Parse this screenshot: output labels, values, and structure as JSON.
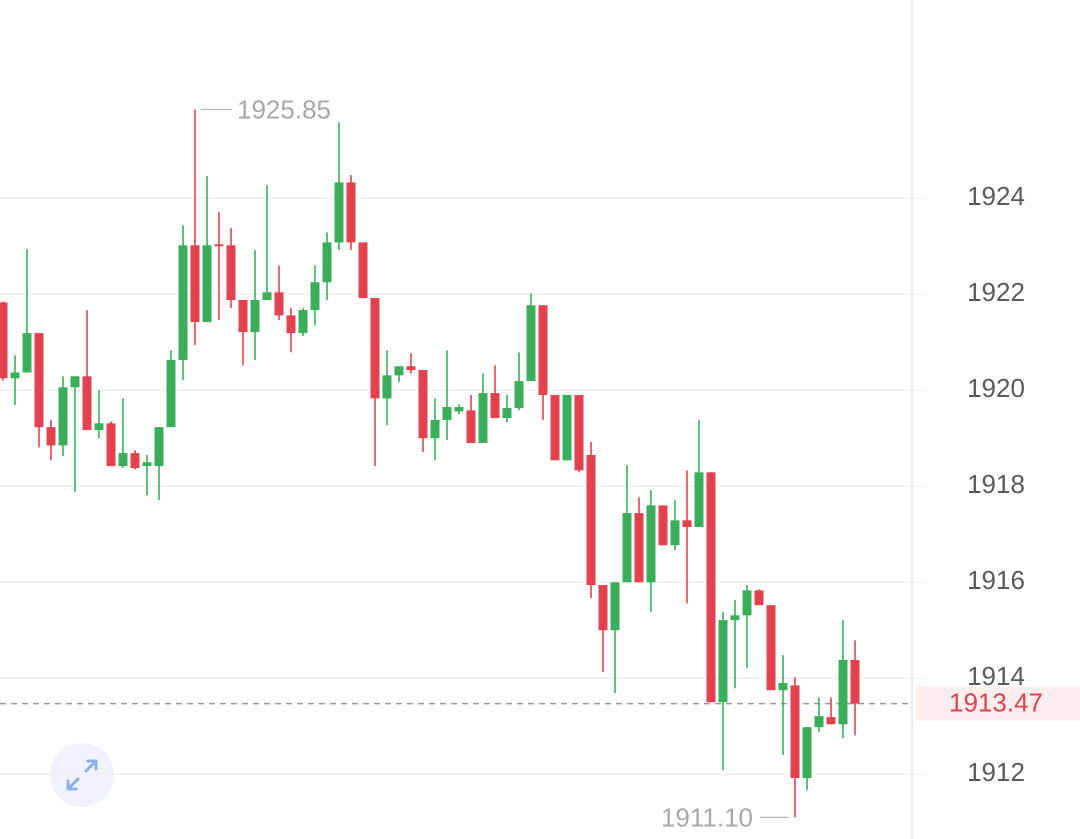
{
  "chart_data": {
    "type": "candlestick",
    "open": [
      1921.83,
      1920.25,
      1920.37,
      1921.19,
      1919.23,
      1918.85,
      1920.06,
      1920.29,
      1919.17,
      1919.31,
      1918.42,
      1918.69,
      1918.42,
      1918.42,
      1919.23,
      1920.63,
      1923.02,
      1921.42,
      1923.04,
      1923.02,
      1921.88,
      1921.21,
      1921.88,
      1922.04,
      1921.56,
      1921.19,
      1921.67,
      1922.25,
      1923.08,
      1924.33,
      1923.08,
      1921.92,
      1919.83,
      1920.31,
      1920.5,
      1920.42,
      1919.0,
      1919.38,
      1919.56,
      1919.58,
      1918.9,
      1919.94,
      1919.42,
      1919.63,
      1920.19,
      1921.77,
      1919.9,
      1918.54,
      1919.9,
      1918.65,
      1915.94,
      1915.0,
      1916.0,
      1917.44,
      1916.0,
      1917.6,
      1916.77,
      1917.29,
      1917.15,
      1918.29,
      1913.5,
      1915.21,
      1915.31,
      1915.83,
      1915.52,
      1913.75,
      1913.85,
      1911.92,
      1912.98,
      1913.19,
      1913.04,
      1914.38
    ],
    "high": [
      1921.85,
      1920.73,
      1922.94,
      1921.19,
      1919.38,
      1920.29,
      1920.29,
      1921.67,
      1920.0,
      1919.35,
      1919.83,
      1918.75,
      1918.65,
      1919.23,
      1920.83,
      1923.44,
      1925.85,
      1924.46,
      1923.71,
      1923.38,
      1921.88,
      1922.92,
      1924.27,
      1922.6,
      1921.71,
      1921.71,
      1922.6,
      1923.29,
      1925.58,
      1924.48,
      1923.08,
      1921.92,
      1920.83,
      1920.5,
      1920.77,
      1920.42,
      1919.83,
      1920.83,
      1919.71,
      1919.9,
      1920.35,
      1920.52,
      1919.9,
      1920.79,
      1922.02,
      1921.77,
      1919.9,
      1919.9,
      1919.9,
      1918.92,
      1915.94,
      1916.0,
      1918.44,
      1917.77,
      1917.92,
      1917.6,
      1917.71,
      1918.33,
      1919.38,
      1918.29,
      1915.38,
      1915.63,
      1915.94,
      1915.85,
      1915.52,
      1914.48,
      1914.02,
      1912.98,
      1913.6,
      1913.6,
      1915.21,
      1914.79
    ],
    "low": [
      1920.2,
      1919.69,
      1920.37,
      1918.81,
      1918.54,
      1918.63,
      1917.88,
      1919.17,
      1919.0,
      1918.42,
      1918.38,
      1918.35,
      1917.81,
      1917.71,
      1919.23,
      1920.21,
      1920.94,
      1921.42,
      1921.46,
      1921.71,
      1920.52,
      1920.63,
      1921.88,
      1921.46,
      1920.79,
      1921.13,
      1921.35,
      1921.88,
      1922.92,
      1922.92,
      1921.92,
      1918.42,
      1919.27,
      1920.17,
      1920.35,
      1918.71,
      1918.54,
      1918.96,
      1919.5,
      1918.9,
      1918.9,
      1919.42,
      1919.33,
      1919.58,
      1920.19,
      1919.38,
      1918.54,
      1918.54,
      1918.29,
      1915.67,
      1914.13,
      1913.69,
      1916.0,
      1916.0,
      1915.38,
      1916.77,
      1916.67,
      1915.56,
      1917.15,
      1913.5,
      1912.08,
      1913.79,
      1914.21,
      1915.52,
      1913.75,
      1912.4,
      1911.1,
      1911.67,
      1912.88,
      1913.04,
      1912.75,
      1912.81
    ],
    "close": [
      1920.25,
      1920.37,
      1921.19,
      1919.23,
      1918.85,
      1920.06,
      1920.29,
      1919.17,
      1919.31,
      1918.42,
      1918.69,
      1918.38,
      1918.5,
      1919.23,
      1920.63,
      1923.02,
      1921.42,
      1923.02,
      1923.0,
      1921.88,
      1921.21,
      1921.88,
      1922.04,
      1921.56,
      1921.19,
      1921.67,
      1922.25,
      1923.08,
      1924.33,
      1923.08,
      1921.92,
      1919.83,
      1920.31,
      1920.5,
      1920.42,
      1919.0,
      1919.38,
      1919.65,
      1919.65,
      1918.9,
      1919.94,
      1919.42,
      1919.63,
      1920.19,
      1921.77,
      1919.9,
      1918.54,
      1919.9,
      1918.33,
      1915.94,
      1915.0,
      1916.0,
      1917.44,
      1916.0,
      1917.6,
      1916.77,
      1917.29,
      1917.15,
      1918.29,
      1913.5,
      1915.21,
      1915.31,
      1915.83,
      1915.52,
      1913.75,
      1913.9,
      1911.92,
      1912.98,
      1913.21,
      1913.04,
      1914.38,
      1913.47
    ],
    "up_color": "#3aae5a",
    "down_color": "#e2414f",
    "ylim": [
      1910.65,
      1928.13
    ],
    "yticks": [
      1912,
      1914,
      1916,
      1918,
      1920,
      1922,
      1924
    ],
    "grid": true,
    "high_marker": 1925.85,
    "low_marker": {
      "value": 1911.1,
      "label": "1911.10"
    },
    "last_price": 1913.47
  }
}
